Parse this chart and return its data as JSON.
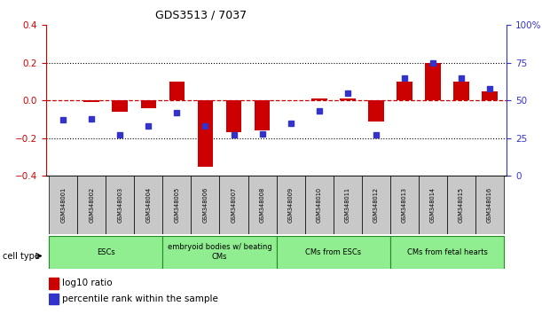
{
  "title": "GDS3513 / 7037",
  "samples": [
    "GSM348001",
    "GSM348002",
    "GSM348003",
    "GSM348004",
    "GSM348005",
    "GSM348006",
    "GSM348007",
    "GSM348008",
    "GSM348009",
    "GSM348010",
    "GSM348011",
    "GSM348012",
    "GSM348013",
    "GSM348014",
    "GSM348015",
    "GSM348016"
  ],
  "log10_ratio": [
    0.0,
    -0.01,
    -0.06,
    -0.04,
    0.1,
    -0.35,
    -0.17,
    -0.16,
    0.0,
    0.01,
    0.01,
    -0.11,
    0.1,
    0.2,
    0.1,
    0.05
  ],
  "percentile_rank": [
    37,
    38,
    27,
    33,
    42,
    33,
    27,
    28,
    35,
    43,
    55,
    27,
    65,
    75,
    65,
    58
  ],
  "cell_type_groups": [
    {
      "label": "ESCs",
      "start": 0,
      "end": 3
    },
    {
      "label": "embryoid bodies w/ beating\nCMs",
      "start": 4,
      "end": 7
    },
    {
      "label": "CMs from ESCs",
      "start": 8,
      "end": 11
    },
    {
      "label": "CMs from fetal hearts",
      "start": 12,
      "end": 15
    }
  ],
  "ylim_left": [
    -0.4,
    0.4
  ],
  "ylim_right": [
    0,
    100
  ],
  "bar_width": 0.55,
  "red_color": "#CC0000",
  "blue_color": "#3333CC",
  "zero_line_color": "#CC0000",
  "cell_group_color": "#90EE90",
  "cell_group_border": "#228B22",
  "sample_box_color": "#C8C8C8",
  "fig_bg": "#FFFFFF"
}
